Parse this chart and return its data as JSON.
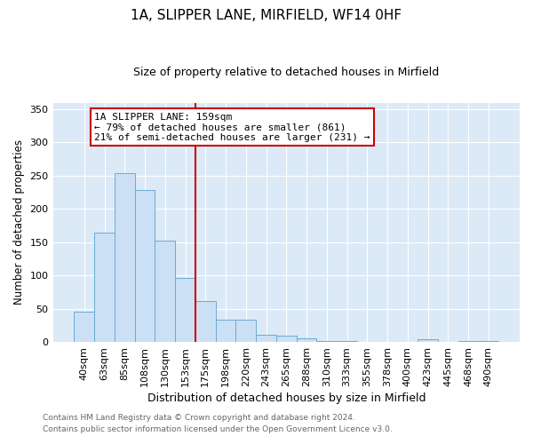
{
  "title": "1A, SLIPPER LANE, MIRFIELD, WF14 0HF",
  "subtitle": "Size of property relative to detached houses in Mirfield",
  "xlabel": "Distribution of detached houses by size in Mirfield",
  "ylabel": "Number of detached properties",
  "bar_labels": [
    "40sqm",
    "63sqm",
    "85sqm",
    "108sqm",
    "130sqm",
    "153sqm",
    "175sqm",
    "198sqm",
    "220sqm",
    "243sqm",
    "265sqm",
    "288sqm",
    "310sqm",
    "333sqm",
    "355sqm",
    "378sqm",
    "400sqm",
    "423sqm",
    "445sqm",
    "468sqm",
    "490sqm"
  ],
  "bar_values": [
    45,
    165,
    254,
    229,
    152,
    96,
    61,
    34,
    33,
    11,
    10,
    5,
    2,
    2,
    0,
    0,
    0,
    4,
    0,
    2,
    1
  ],
  "bar_color": "#cce0f5",
  "bar_edge_color": "#6aaad4",
  "vline_x": 5.5,
  "vline_color": "#cc0000",
  "annotation_title": "1A SLIPPER LANE: 159sqm",
  "annotation_line1": "← 79% of detached houses are smaller (861)",
  "annotation_line2": "21% of semi-detached houses are larger (231) →",
  "annotation_box_color": "#cc0000",
  "ylim": [
    0,
    360
  ],
  "yticks": [
    0,
    50,
    100,
    150,
    200,
    250,
    300,
    350
  ],
  "footer1": "Contains HM Land Registry data © Crown copyright and database right 2024.",
  "footer2": "Contains public sector information licensed under the Open Government Licence v3.0.",
  "plot_bg_color": "#dce9f7",
  "fig_bg_color": "#ffffff",
  "grid_color": "#ffffff",
  "title_fontsize": 11,
  "subtitle_fontsize": 9
}
